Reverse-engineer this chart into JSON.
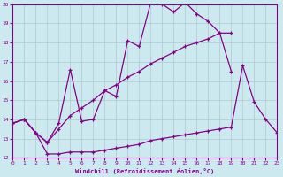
{
  "xlabel": "Windchill (Refroidissement éolien,°C)",
  "xlim": [
    0,
    23
  ],
  "ylim": [
    12,
    20
  ],
  "xticks": [
    0,
    1,
    2,
    3,
    4,
    5,
    6,
    7,
    8,
    9,
    10,
    11,
    12,
    13,
    14,
    15,
    16,
    17,
    18,
    19,
    20,
    21,
    22,
    23
  ],
  "yticks": [
    12,
    13,
    14,
    15,
    16,
    17,
    18,
    19,
    20
  ],
  "bg_color": "#cce9ef",
  "line_color": "#880088",
  "grid_color": "#aacccc",
  "line1_x": [
    0,
    1,
    2,
    3,
    4,
    5,
    6,
    7,
    8,
    9,
    10,
    11,
    12,
    13,
    14,
    15,
    16,
    17,
    18,
    19
  ],
  "line1_y": [
    13.8,
    14.0,
    13.3,
    12.8,
    13.8,
    16.6,
    13.9,
    14.0,
    15.5,
    15.2,
    18.1,
    17.8,
    20.1,
    20.0,
    19.6,
    20.1,
    19.5,
    19.1,
    18.5,
    16.5
  ],
  "line2_x": [
    0,
    1,
    2,
    3,
    4,
    5,
    6,
    7,
    8,
    9,
    10,
    11,
    12,
    13,
    14,
    15,
    16,
    17,
    18,
    19
  ],
  "line2_y": [
    13.8,
    14.0,
    13.3,
    12.8,
    13.5,
    14.2,
    14.6,
    15.0,
    15.5,
    15.8,
    16.2,
    16.5,
    16.9,
    17.2,
    17.5,
    17.8,
    18.0,
    18.2,
    18.5,
    18.5
  ],
  "line3_x": [
    0,
    1,
    2,
    3,
    4,
    5,
    6,
    7,
    8,
    9,
    10,
    11,
    12,
    13,
    14,
    15,
    16,
    17,
    18,
    19,
    20,
    21,
    22,
    23
  ],
  "line3_y": [
    13.8,
    14.0,
    13.3,
    12.2,
    12.2,
    12.3,
    12.3,
    12.3,
    12.4,
    12.5,
    12.6,
    12.7,
    12.9,
    13.0,
    13.1,
    13.2,
    13.3,
    13.4,
    13.5,
    13.6,
    16.8,
    14.9,
    14.0,
    13.3
  ]
}
